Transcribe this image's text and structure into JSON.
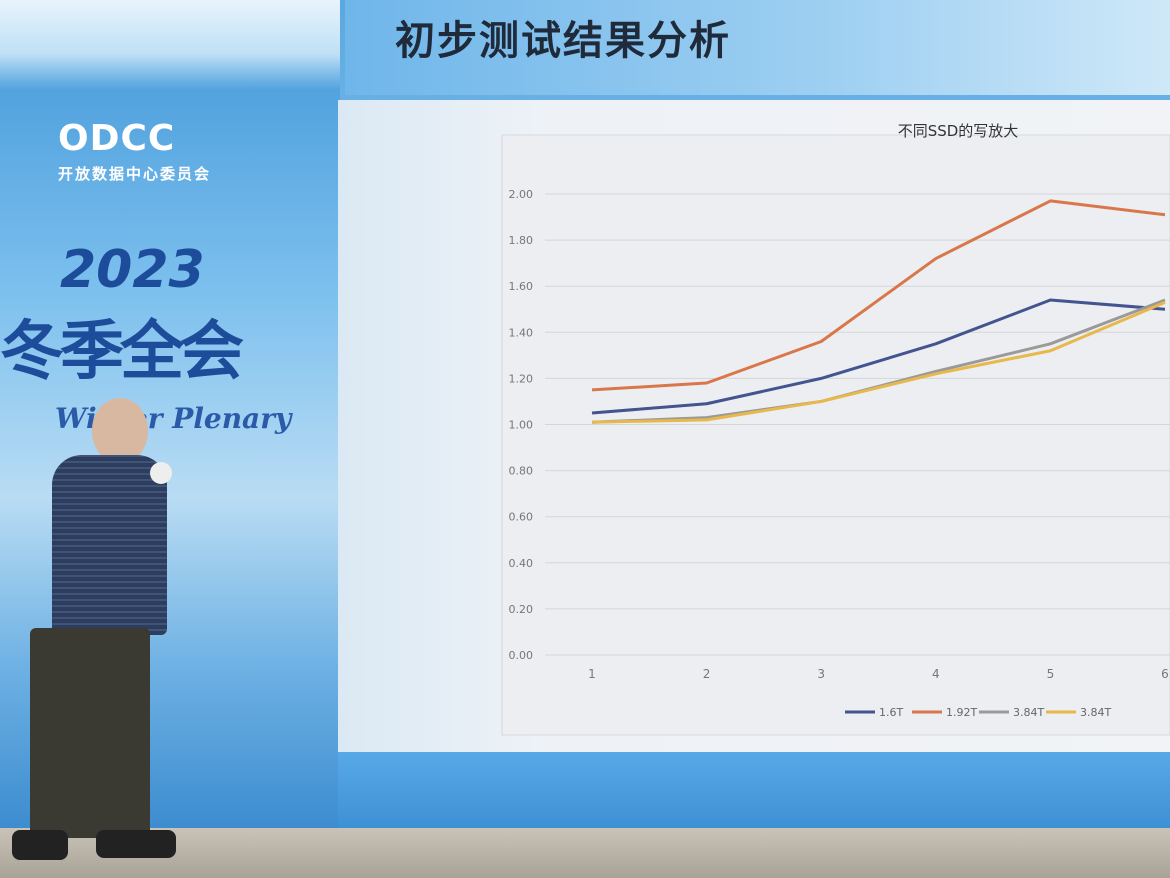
{
  "banner": {
    "logo": "ODCC",
    "logo_subtitle": "开放数据中心委员会",
    "year": "2023",
    "event": "冬季全会",
    "event_en": "Winter Plenary"
  },
  "slide": {
    "title": "初步测试结果分析"
  },
  "chart_data": {
    "type": "line",
    "title": "不同SSD的写放大",
    "xlabel": "",
    "ylabel": "",
    "categories": [
      "1",
      "2",
      "3",
      "4",
      "5",
      "6"
    ],
    "ylim": [
      0,
      2.0
    ],
    "yticks": [
      "0.00",
      "0.20",
      "0.40",
      "0.60",
      "0.80",
      "1.00",
      "1.20",
      "1.40",
      "1.60",
      "1.80",
      "2.00"
    ],
    "grid": true,
    "legend": "bottom",
    "series": [
      {
        "name": "1.6T",
        "color": "#44548f",
        "values": [
          1.05,
          1.09,
          1.2,
          1.35,
          1.54,
          1.5
        ]
      },
      {
        "name": "1.92T",
        "color": "#d9774a",
        "values": [
          1.15,
          1.18,
          1.36,
          1.72,
          1.97,
          1.91
        ]
      },
      {
        "name": "3.84T",
        "color": "#9a9a9a",
        "values": [
          1.01,
          1.03,
          1.1,
          1.23,
          1.35,
          1.54
        ]
      },
      {
        "name": "3.84T",
        "color": "#e8b84a",
        "values": [
          1.01,
          1.02,
          1.1,
          1.22,
          1.32,
          1.53
        ]
      }
    ]
  }
}
